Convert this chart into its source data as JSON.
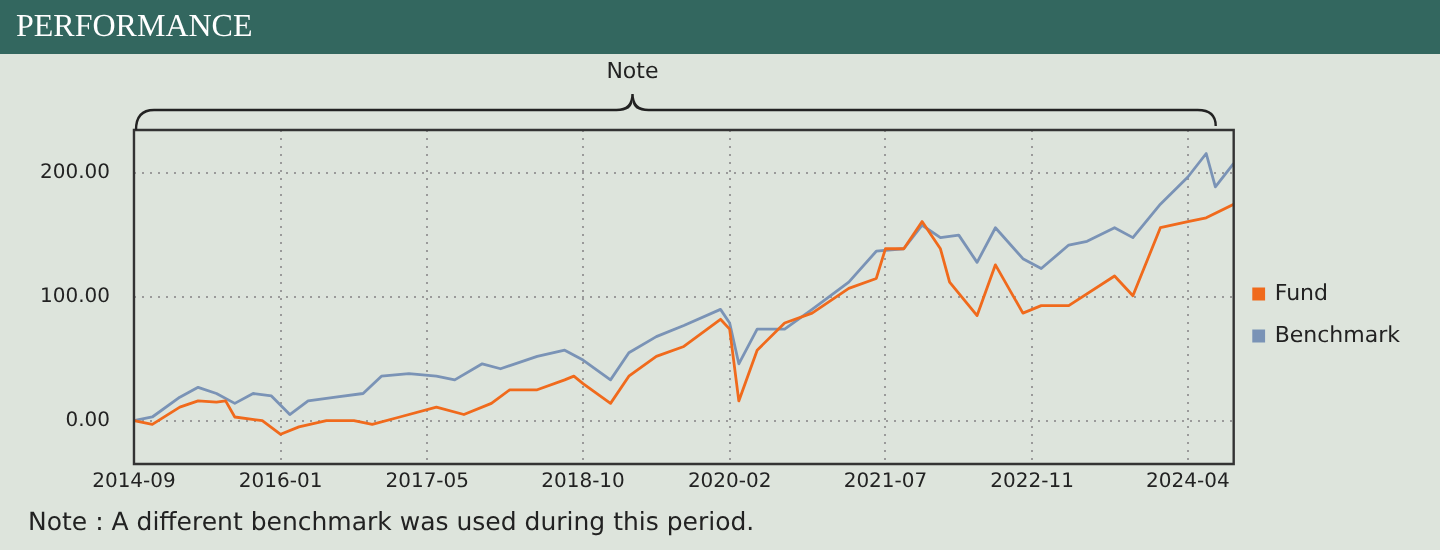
{
  "chart_data": {
    "type": "line",
    "title": "PERFORMANCE",
    "annotations": [
      "Note",
      "Note : A different benchmark was used during this period."
    ],
    "xlim": [
      "2014-09",
      "2024-09"
    ],
    "xticks": [
      "2014-09",
      "2016-01",
      "2017-05",
      "2018-10",
      "2020-02",
      "2021-07",
      "2022-11",
      "2024-04"
    ],
    "ylim": [
      -35,
      235
    ],
    "yticks": [
      {
        "value": 0,
        "label": "0.00"
      },
      {
        "value": 100,
        "label": "100.00"
      },
      {
        "value": 200,
        "label": "200.00"
      }
    ],
    "grid": true,
    "legend": "right",
    "series": [
      {
        "name": "Fund",
        "color": "#f06a1c",
        "x": [
          "2014-09",
          "2014-11",
          "2015-02",
          "2015-04",
          "2015-06",
          "2015-07",
          "2015-08",
          "2015-11",
          "2016-01",
          "2016-03",
          "2016-06",
          "2016-09",
          "2016-11",
          "2017-02",
          "2017-06",
          "2017-09",
          "2017-12",
          "2018-02",
          "2018-05",
          "2018-08",
          "2018-09",
          "2018-10",
          "2019-01",
          "2019-03",
          "2019-06",
          "2019-09",
          "2020-01",
          "2020-02",
          "2020-03",
          "2020-05",
          "2020-08",
          "2020-11",
          "2021-03",
          "2021-06",
          "2021-07",
          "2021-09",
          "2021-11",
          "2022-01",
          "2022-02",
          "2022-05",
          "2022-07",
          "2022-10",
          "2022-12",
          "2023-03",
          "2023-08",
          "2023-10",
          "2024-01",
          "2024-04",
          "2024-06",
          "2024-09"
        ],
        "values": [
          0,
          -3,
          11,
          16,
          15,
          16,
          3,
          0,
          -11,
          -5,
          0,
          0,
          -3,
          3,
          11,
          5,
          14,
          25,
          25,
          33,
          36,
          30,
          14,
          36,
          52,
          60,
          82,
          74,
          16,
          57,
          79,
          87,
          107,
          115,
          139,
          139,
          161,
          139,
          112,
          85,
          126,
          87,
          93,
          93,
          117,
          101,
          156,
          161,
          164,
          175
        ]
      },
      {
        "name": "Benchmark",
        "color": "#7a93b6",
        "x": [
          "2014-09",
          "2014-11",
          "2015-02",
          "2015-04",
          "2015-06",
          "2015-08",
          "2015-10",
          "2015-12",
          "2016-02",
          "2016-04",
          "2016-07",
          "2016-10",
          "2016-12",
          "2017-03",
          "2017-06",
          "2017-08",
          "2017-11",
          "2018-01",
          "2018-05",
          "2018-08",
          "2018-10",
          "2019-01",
          "2019-03",
          "2019-06",
          "2019-09",
          "2020-01",
          "2020-02",
          "2020-03",
          "2020-05",
          "2020-08",
          "2020-11",
          "2021-03",
          "2021-06",
          "2021-09",
          "2021-11",
          "2022-01",
          "2022-03",
          "2022-05",
          "2022-07",
          "2022-10",
          "2022-12",
          "2023-03",
          "2023-05",
          "2023-08",
          "2023-10",
          "2024-01",
          "2024-04",
          "2024-06",
          "2024-07",
          "2024-09"
        ],
        "values": [
          0,
          3,
          19,
          27,
          22,
          14,
          22,
          20,
          5,
          16,
          19,
          22,
          36,
          38,
          36,
          33,
          46,
          42,
          52,
          57,
          49,
          33,
          55,
          68,
          77,
          90,
          79,
          46,
          74,
          74,
          90,
          112,
          137,
          139,
          158,
          148,
          150,
          128,
          156,
          131,
          123,
          142,
          145,
          156,
          148,
          175,
          197,
          216,
          189,
          208
        ]
      }
    ]
  }
}
